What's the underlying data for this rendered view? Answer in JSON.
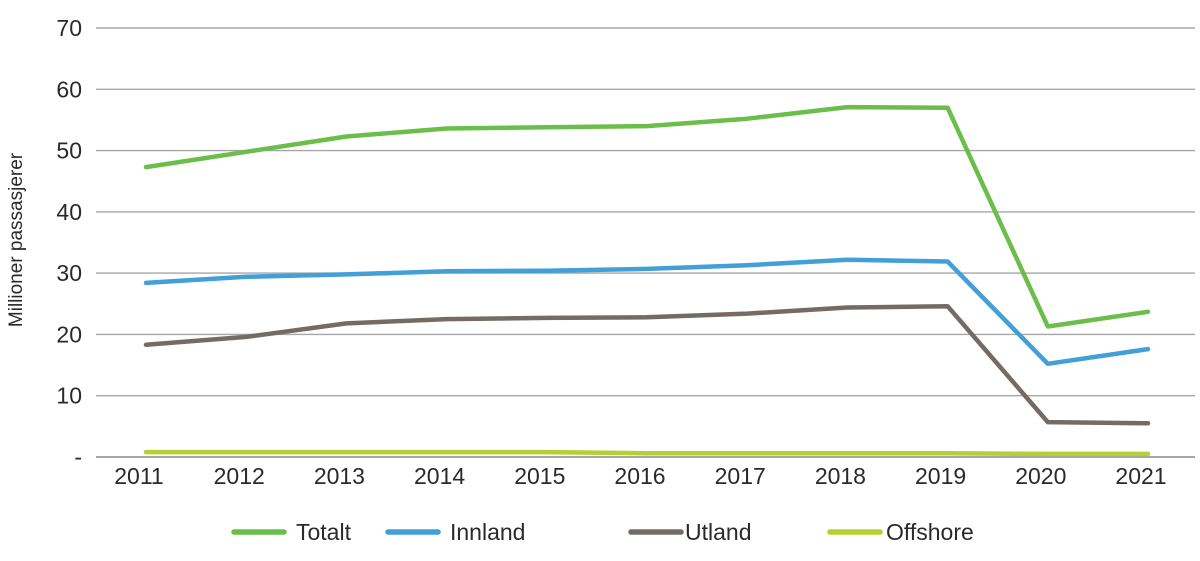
{
  "figure": {
    "background_color": "#ffffff",
    "text_color": "#2b2a29",
    "grid_color": "#a6a6a6"
  },
  "chart_data": {
    "type": "line",
    "title": "",
    "xlabel": "",
    "ylabel": "Millioner passasjerer",
    "x": [
      "2011",
      "2012",
      "2013",
      "2014",
      "2015",
      "2016",
      "2017",
      "2018",
      "2019",
      "2020",
      "2021"
    ],
    "ylim": [
      0,
      70
    ],
    "ytick_interval": 10,
    "ytick_labels": [
      "-",
      "10",
      "20",
      "30",
      "40",
      "50",
      "60",
      "70"
    ],
    "grid": "horizontal",
    "legend_position": "bottom",
    "series": [
      {
        "name": "Totalt",
        "color": "#6cbe4b",
        "values": [
          47.3,
          49.8,
          52.3,
          53.6,
          53.8,
          54.0,
          55.2,
          57.1,
          57.0,
          21.3,
          23.7
        ]
      },
      {
        "name": "Innland",
        "color": "#429fd7",
        "values": [
          28.4,
          29.4,
          29.8,
          30.3,
          30.4,
          30.7,
          31.3,
          32.2,
          31.9,
          15.2,
          17.6
        ]
      },
      {
        "name": "Utland",
        "color": "#756b65",
        "values": [
          18.3,
          19.6,
          21.8,
          22.5,
          22.7,
          22.8,
          23.4,
          24.4,
          24.6,
          5.7,
          5.5
        ]
      },
      {
        "name": "Offshore",
        "color": "#b6cf33",
        "values": [
          0.8,
          0.8,
          0.8,
          0.8,
          0.8,
          0.6,
          0.6,
          0.6,
          0.6,
          0.5,
          0.5
        ]
      }
    ]
  }
}
